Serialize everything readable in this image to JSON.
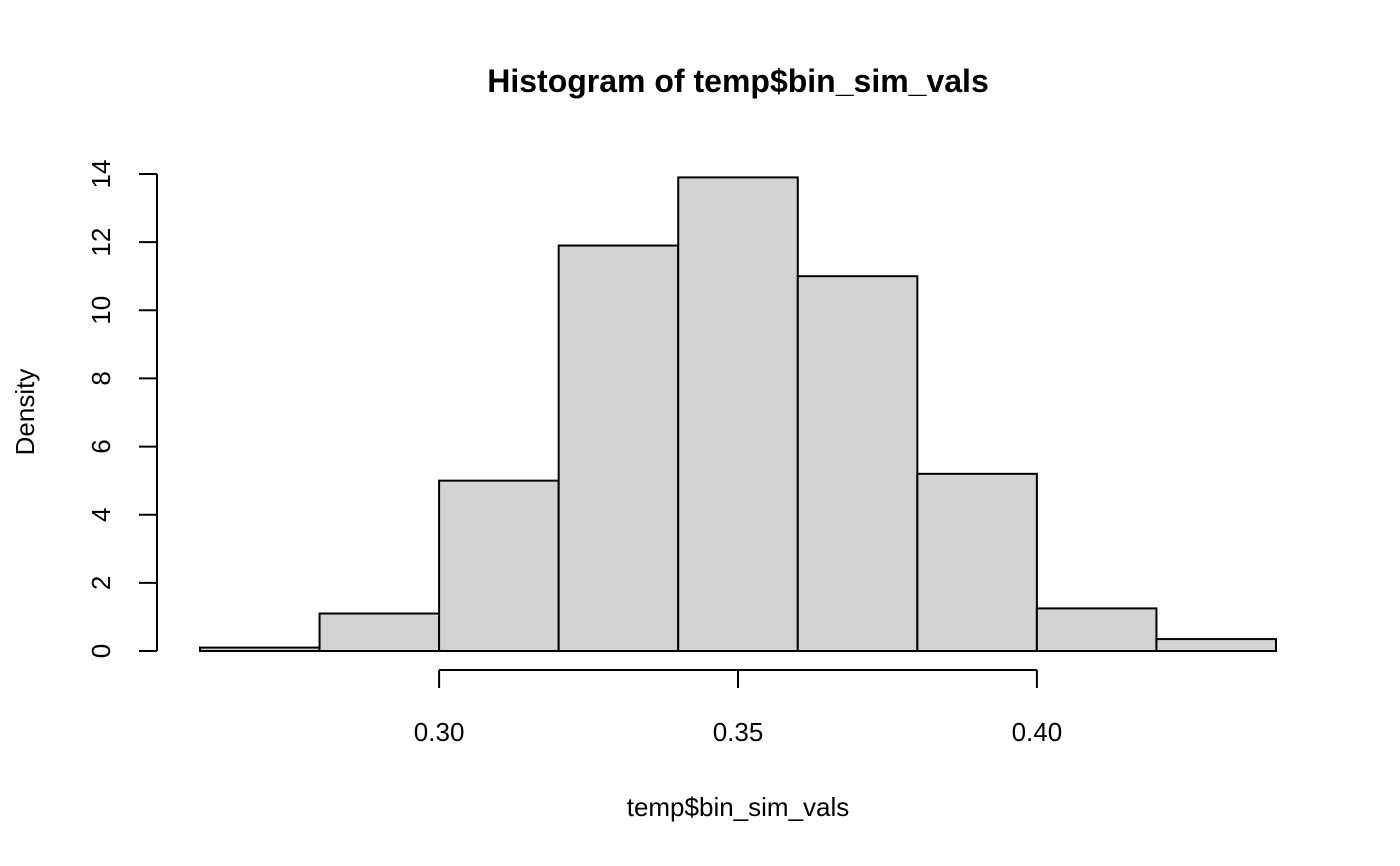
{
  "chart_data": {
    "type": "bar",
    "title": "Histogram of temp$bin_sim_vals",
    "xlabel": "temp$bin_sim_vals",
    "ylabel": "Density",
    "bins": [
      {
        "start": 0.26,
        "end": 0.28,
        "density": 0.1
      },
      {
        "start": 0.28,
        "end": 0.3,
        "density": 1.1
      },
      {
        "start": 0.3,
        "end": 0.32,
        "density": 5.0
      },
      {
        "start": 0.32,
        "end": 0.34,
        "density": 11.9
      },
      {
        "start": 0.34,
        "end": 0.36,
        "density": 13.9
      },
      {
        "start": 0.36,
        "end": 0.38,
        "density": 11.0
      },
      {
        "start": 0.38,
        "end": 0.4,
        "density": 5.2
      },
      {
        "start": 0.4,
        "end": 0.42,
        "density": 1.25
      },
      {
        "start": 0.42,
        "end": 0.44,
        "density": 0.35
      }
    ],
    "x_ticks": [
      "0.30",
      "0.35",
      "0.40"
    ],
    "x_tick_values": [
      0.3,
      0.35,
      0.4
    ],
    "y_ticks": [
      "0",
      "2",
      "4",
      "6",
      "8",
      "10",
      "12",
      "14"
    ],
    "y_tick_values": [
      0,
      2,
      4,
      6,
      8,
      10,
      12,
      14
    ],
    "xlim": [
      0.26,
      0.44
    ],
    "ylim": [
      0,
      14
    ],
    "bar_fill": "#d3d3d3",
    "bar_stroke": "#000000",
    "grid": false
  }
}
